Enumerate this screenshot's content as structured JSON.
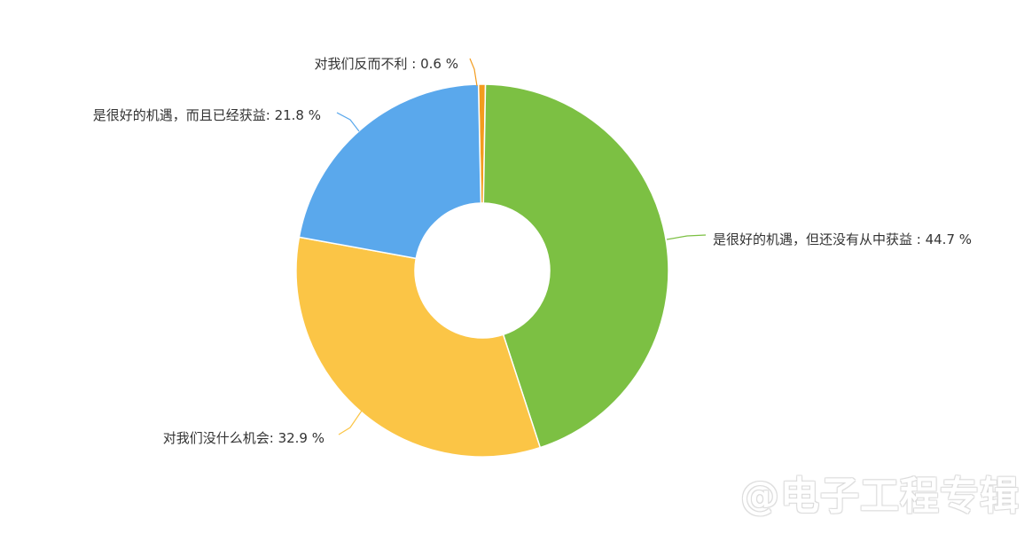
{
  "chart_data": {
    "type": "pie",
    "variant": "donut",
    "title": "",
    "slices": [
      {
        "label": "对我们反而不利",
        "value": 0.6,
        "display": "对我们反而不利 : 0.6 %",
        "color": "#f39c1e"
      },
      {
        "label": "是很好的机遇，但还没有从中获益",
        "value": 44.7,
        "display": "是很好的机遇，但还没有从中获益 : 44.7 %",
        "color": "#7cc043"
      },
      {
        "label": "对我们没什么机会",
        "value": 32.9,
        "display": "对我们没什么机会: 32.9 %",
        "color": "#fbc546"
      },
      {
        "label": "是很好的机遇，而且已经获益",
        "value": 21.8,
        "display": "是很好的机遇，而且已经获益: 21.8 %",
        "color": "#5aa8ec"
      }
    ],
    "legend": "none"
  },
  "watermark": {
    "text": "@电子工程专辑"
  }
}
